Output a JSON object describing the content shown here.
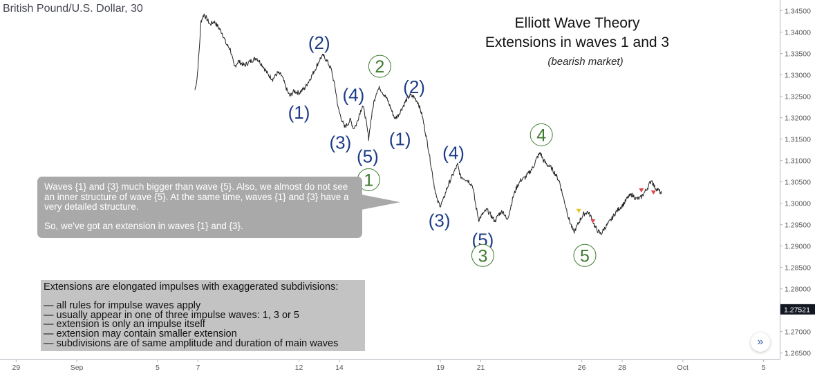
{
  "symbol_title": "British Pound/U.S. Dollar, 30",
  "title_lines": [
    "Elliott Wave Theory",
    "Extensions in waves 1 and 3"
  ],
  "subtitle": "(bearish market)",
  "callout": {
    "text": "Waves {1} and {3} much bigger than wave {5}. Also, we almost do not see an inner structure of wave {5}. At the same time, waves {1} and {3} have a very detailed structure.",
    "conclusion": "So, we've got an extension in waves {1} and {3}."
  },
  "extension_box": {
    "heading": "Extensions are elongated impulses with exaggerated subdivisions:",
    "items": [
      "— all rules for impulse waves apply",
      "— usually appear in one of three impulse waves: 1, 3 or 5",
      "— extension is only an impulse itself",
      "— extension may contain smaller extension",
      "— subdivisions are of same amplitude and duration of main waves"
    ]
  },
  "colors": {
    "price_line": "#222222",
    "navy_labels": "#1d3c87",
    "green_labels": "#3c7a2d",
    "last_price_badge": "#131722",
    "axis_text": "#555555",
    "marker_yellow": "#e8c21a",
    "marker_red": "#e0454b"
  },
  "nav_icon": "chevron-double-right-icon",
  "chart_data": {
    "type": "line",
    "instrument": "British Pound/U.S. Dollar",
    "interval": "30",
    "x_ticks": [
      {
        "label": "29",
        "day": 29
      },
      {
        "label": "Sep",
        "day": 32
      },
      {
        "label": "5",
        "day": 36
      },
      {
        "label": "7",
        "day": 38
      },
      {
        "label": "12",
        "day": 43
      },
      {
        "label": "14",
        "day": 45
      },
      {
        "label": "19",
        "day": 50
      },
      {
        "label": "21",
        "day": 52
      },
      {
        "label": "26",
        "day": 57
      },
      {
        "label": "28",
        "day": 59
      },
      {
        "label": "Oct",
        "day": 62
      },
      {
        "label": "5",
        "day": 66
      }
    ],
    "xlim": [
      28.2,
      66.8
    ],
    "y_ticks": [
      "1.34500",
      "1.34000",
      "1.33500",
      "1.33000",
      "1.32500",
      "1.32000",
      "1.31500",
      "1.31000",
      "1.30500",
      "1.30000",
      "1.29500",
      "1.29000",
      "1.28500",
      "1.28000",
      "1.27500",
      "1.27000",
      "1.26500"
    ],
    "ylim": [
      1.2635,
      1.3475
    ],
    "last_price": 1.27521,
    "last_price_label": "1.27521",
    "series": [
      {
        "values": [
          [
            37.85,
            1.3265
          ],
          [
            37.95,
            1.329
          ],
          [
            38.05,
            1.335
          ],
          [
            38.15,
            1.3425
          ],
          [
            38.3,
            1.3442
          ],
          [
            38.45,
            1.343
          ],
          [
            38.6,
            1.3418
          ],
          [
            38.8,
            1.3425
          ],
          [
            39.0,
            1.3412
          ],
          [
            39.2,
            1.3398
          ],
          [
            39.4,
            1.3372
          ],
          [
            39.6,
            1.336
          ],
          [
            39.8,
            1.3318
          ],
          [
            40.0,
            1.3332
          ],
          [
            40.3,
            1.3322
          ],
          [
            40.6,
            1.3332
          ],
          [
            40.9,
            1.334
          ],
          [
            41.2,
            1.3322
          ],
          [
            41.45,
            1.3302
          ],
          [
            41.7,
            1.329
          ],
          [
            41.95,
            1.3305
          ],
          [
            42.15,
            1.3298
          ],
          [
            42.4,
            1.3265
          ],
          [
            42.55,
            1.325
          ],
          [
            42.75,
            1.3262
          ],
          [
            43.0,
            1.3258
          ],
          [
            43.3,
            1.327
          ],
          [
            43.6,
            1.3295
          ],
          [
            43.85,
            1.3318
          ],
          [
            44.05,
            1.3338
          ],
          [
            44.2,
            1.3345
          ],
          [
            44.4,
            1.3332
          ],
          [
            44.6,
            1.3312
          ],
          [
            44.8,
            1.3268
          ],
          [
            44.95,
            1.322
          ],
          [
            45.1,
            1.3198
          ],
          [
            45.25,
            1.3178
          ],
          [
            45.4,
            1.3185
          ],
          [
            45.55,
            1.3195
          ],
          [
            45.7,
            1.3175
          ],
          [
            45.85,
            1.3185
          ],
          [
            46.0,
            1.321
          ],
          [
            46.15,
            1.3228
          ],
          [
            46.25,
            1.3212
          ],
          [
            46.35,
            1.3182
          ],
          [
            46.45,
            1.3152
          ],
          [
            46.55,
            1.319
          ],
          [
            46.7,
            1.3235
          ],
          [
            46.85,
            1.3262
          ],
          [
            47.0,
            1.327
          ],
          [
            47.2,
            1.3255
          ],
          [
            47.4,
            1.324
          ],
          [
            47.6,
            1.3215
          ],
          [
            47.75,
            1.3198
          ],
          [
            47.9,
            1.3205
          ],
          [
            48.1,
            1.3222
          ],
          [
            48.3,
            1.324
          ],
          [
            48.5,
            1.3252
          ],
          [
            48.7,
            1.3248
          ],
          [
            48.9,
            1.3235
          ],
          [
            49.1,
            1.3205
          ],
          [
            49.25,
            1.3168
          ],
          [
            49.4,
            1.313
          ],
          [
            49.55,
            1.3085
          ],
          [
            49.7,
            1.304
          ],
          [
            49.85,
            1.3005
          ],
          [
            50.0,
            1.2995
          ],
          [
            50.15,
            1.3008
          ],
          [
            50.3,
            1.3032
          ],
          [
            50.5,
            1.3055
          ],
          [
            50.7,
            1.3075
          ],
          [
            50.85,
            1.309
          ],
          [
            51.0,
            1.3062
          ],
          [
            51.2,
            1.3058
          ],
          [
            51.4,
            1.3052
          ],
          [
            51.6,
            1.304
          ],
          [
            51.75,
            1.2995
          ],
          [
            51.9,
            1.2962
          ],
          [
            52.1,
            1.2975
          ],
          [
            52.3,
            1.2985
          ],
          [
            52.5,
            1.2972
          ],
          [
            52.7,
            1.2958
          ],
          [
            52.9,
            1.2975
          ],
          [
            53.1,
            1.2982
          ],
          [
            53.3,
            1.296
          ],
          [
            53.45,
            1.2985
          ],
          [
            53.6,
            1.3015
          ],
          [
            53.8,
            1.304
          ],
          [
            54.0,
            1.3055
          ],
          [
            54.2,
            1.306
          ],
          [
            54.4,
            1.3072
          ],
          [
            54.6,
            1.3085
          ],
          [
            54.8,
            1.3108
          ],
          [
            54.95,
            1.3118
          ],
          [
            55.1,
            1.31
          ],
          [
            55.3,
            1.309
          ],
          [
            55.5,
            1.3082
          ],
          [
            55.7,
            1.3068
          ],
          [
            55.9,
            1.305
          ],
          [
            56.05,
            1.302
          ],
          [
            56.2,
            1.2995
          ],
          [
            56.35,
            1.2965
          ],
          [
            56.5,
            1.2945
          ],
          [
            56.6,
            1.2932
          ],
          [
            56.75,
            1.2945
          ],
          [
            56.9,
            1.296
          ],
          [
            57.1,
            1.2975
          ],
          [
            57.3,
            1.298
          ],
          [
            57.5,
            1.2965
          ],
          [
            57.65,
            1.2945
          ],
          [
            57.8,
            1.2935
          ],
          [
            57.95,
            1.2928
          ],
          [
            58.1,
            1.294
          ],
          [
            58.3,
            1.2952
          ],
          [
            58.5,
            1.2965
          ],
          [
            58.7,
            1.298
          ],
          [
            58.9,
            1.299
          ],
          [
            59.1,
            1.3
          ],
          [
            59.3,
            1.3015
          ],
          [
            59.5,
            1.302
          ],
          [
            59.7,
            1.301
          ],
          [
            59.9,
            1.3012
          ],
          [
            60.1,
            1.3025
          ],
          [
            60.3,
            1.304
          ],
          [
            60.45,
            1.3055
          ],
          [
            60.6,
            1.3038
          ],
          [
            60.8,
            1.303
          ],
          [
            60.95,
            1.3022
          ]
        ]
      }
    ],
    "annotations": [
      {
        "label": "(1)",
        "x": 43.0,
        "y": 1.3212,
        "style": "navy"
      },
      {
        "label": "(2)",
        "x": 44.0,
        "y": 1.3375,
        "style": "navy"
      },
      {
        "label": "(3)",
        "x": 45.05,
        "y": 1.3142,
        "style": "navy"
      },
      {
        "label": "(4)",
        "x": 45.7,
        "y": 1.3253,
        "style": "navy"
      },
      {
        "label": "(5)",
        "x": 46.4,
        "y": 1.311,
        "style": "navy"
      },
      {
        "label": "(1)",
        "x": 48.0,
        "y": 1.315,
        "style": "navy"
      },
      {
        "label": "(2)",
        "x": 48.7,
        "y": 1.3272,
        "style": "navy"
      },
      {
        "label": "(3)",
        "x": 49.95,
        "y": 1.296,
        "style": "navy"
      },
      {
        "label": "(4)",
        "x": 50.65,
        "y": 1.3118,
        "style": "navy"
      },
      {
        "label": "(5)",
        "x": 52.1,
        "y": 1.2915,
        "style": "navy"
      },
      {
        "label": "1",
        "x": 46.45,
        "y": 1.3055,
        "style": "green-circle"
      },
      {
        "label": "2",
        "x": 47.0,
        "y": 1.332,
        "style": "green-circle"
      },
      {
        "label": "3",
        "x": 52.1,
        "y": 1.2878,
        "style": "green-circle"
      },
      {
        "label": "4",
        "x": 55.0,
        "y": 1.316,
        "style": "green-circle"
      },
      {
        "label": "5",
        "x": 57.15,
        "y": 1.2878,
        "style": "green-circle"
      }
    ],
    "markers": [
      {
        "x": 56.85,
        "y": 1.2982,
        "color": "yellow"
      },
      {
        "x": 57.55,
        "y": 1.2958,
        "color": "red"
      },
      {
        "x": 59.95,
        "y": 1.303,
        "color": "red"
      },
      {
        "x": 60.55,
        "y": 1.3025,
        "color": "red"
      }
    ],
    "grid": false
  }
}
